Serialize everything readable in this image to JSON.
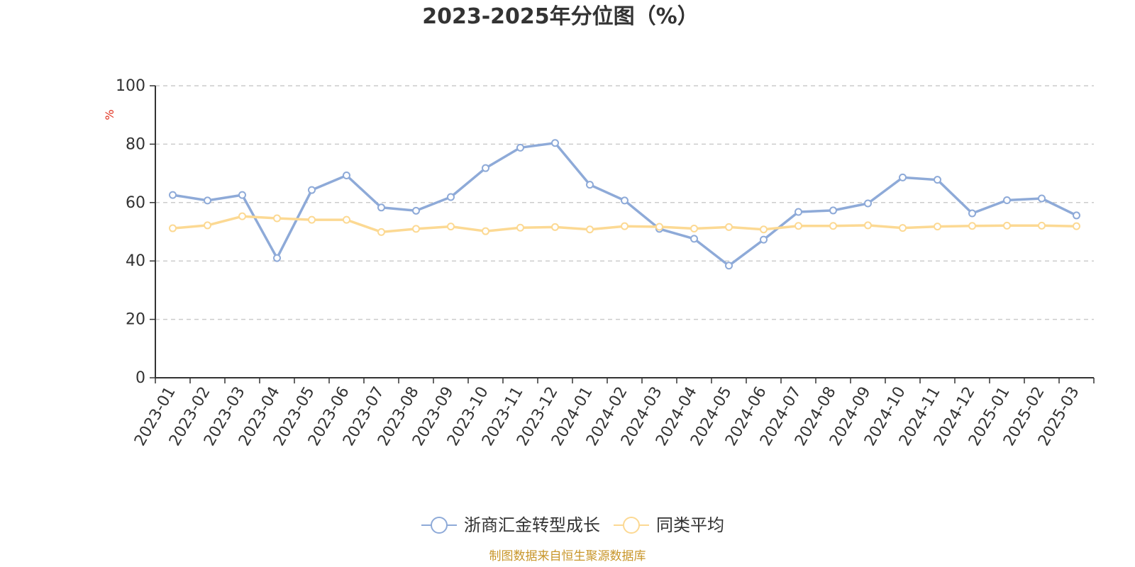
{
  "chart_data": {
    "type": "line",
    "title": "2023-2025年分位图（%）",
    "ylabel": "%",
    "ylim": [
      0,
      100
    ],
    "yticks": [
      0,
      20,
      40,
      60,
      80,
      100
    ],
    "grid": true,
    "legend_position": "bottom-center",
    "categories": [
      "2023-01",
      "2023-02",
      "2023-03",
      "2023-04",
      "2023-05",
      "2023-06",
      "2023-07",
      "2023-08",
      "2023-09",
      "2023-10",
      "2023-11",
      "2023-12",
      "2024-01",
      "2024-02",
      "2024-03",
      "2024-04",
      "2024-05",
      "2024-06",
      "2024-07",
      "2024-08",
      "2024-09",
      "2024-10",
      "2024-11",
      "2024-12",
      "2025-01",
      "2025-02",
      "2025-03"
    ],
    "series": [
      {
        "name": "浙商汇金转型成长",
        "color": "#8eaad8",
        "values": [
          62.6,
          60.7,
          62.6,
          41.0,
          64.3,
          69.3,
          58.3,
          57.2,
          61.9,
          71.8,
          78.8,
          80.4,
          66.1,
          60.7,
          51.0,
          47.6,
          38.4,
          47.3,
          56.8,
          57.3,
          59.7,
          68.6,
          67.8,
          56.3,
          60.8,
          61.4,
          55.6
        ]
      },
      {
        "name": "同类平均",
        "color": "#fcd993",
        "values": [
          51.2,
          52.2,
          55.3,
          54.6,
          54.1,
          54.1,
          49.9,
          51.0,
          51.8,
          50.2,
          51.4,
          51.6,
          50.8,
          51.9,
          51.7,
          51.1,
          51.6,
          50.8,
          52.0,
          52.0,
          52.2,
          51.3,
          51.8,
          52.0,
          52.1,
          52.1,
          51.9
        ]
      }
    ]
  },
  "footer": {
    "source": "制图数据来自恒生聚源数据库"
  }
}
